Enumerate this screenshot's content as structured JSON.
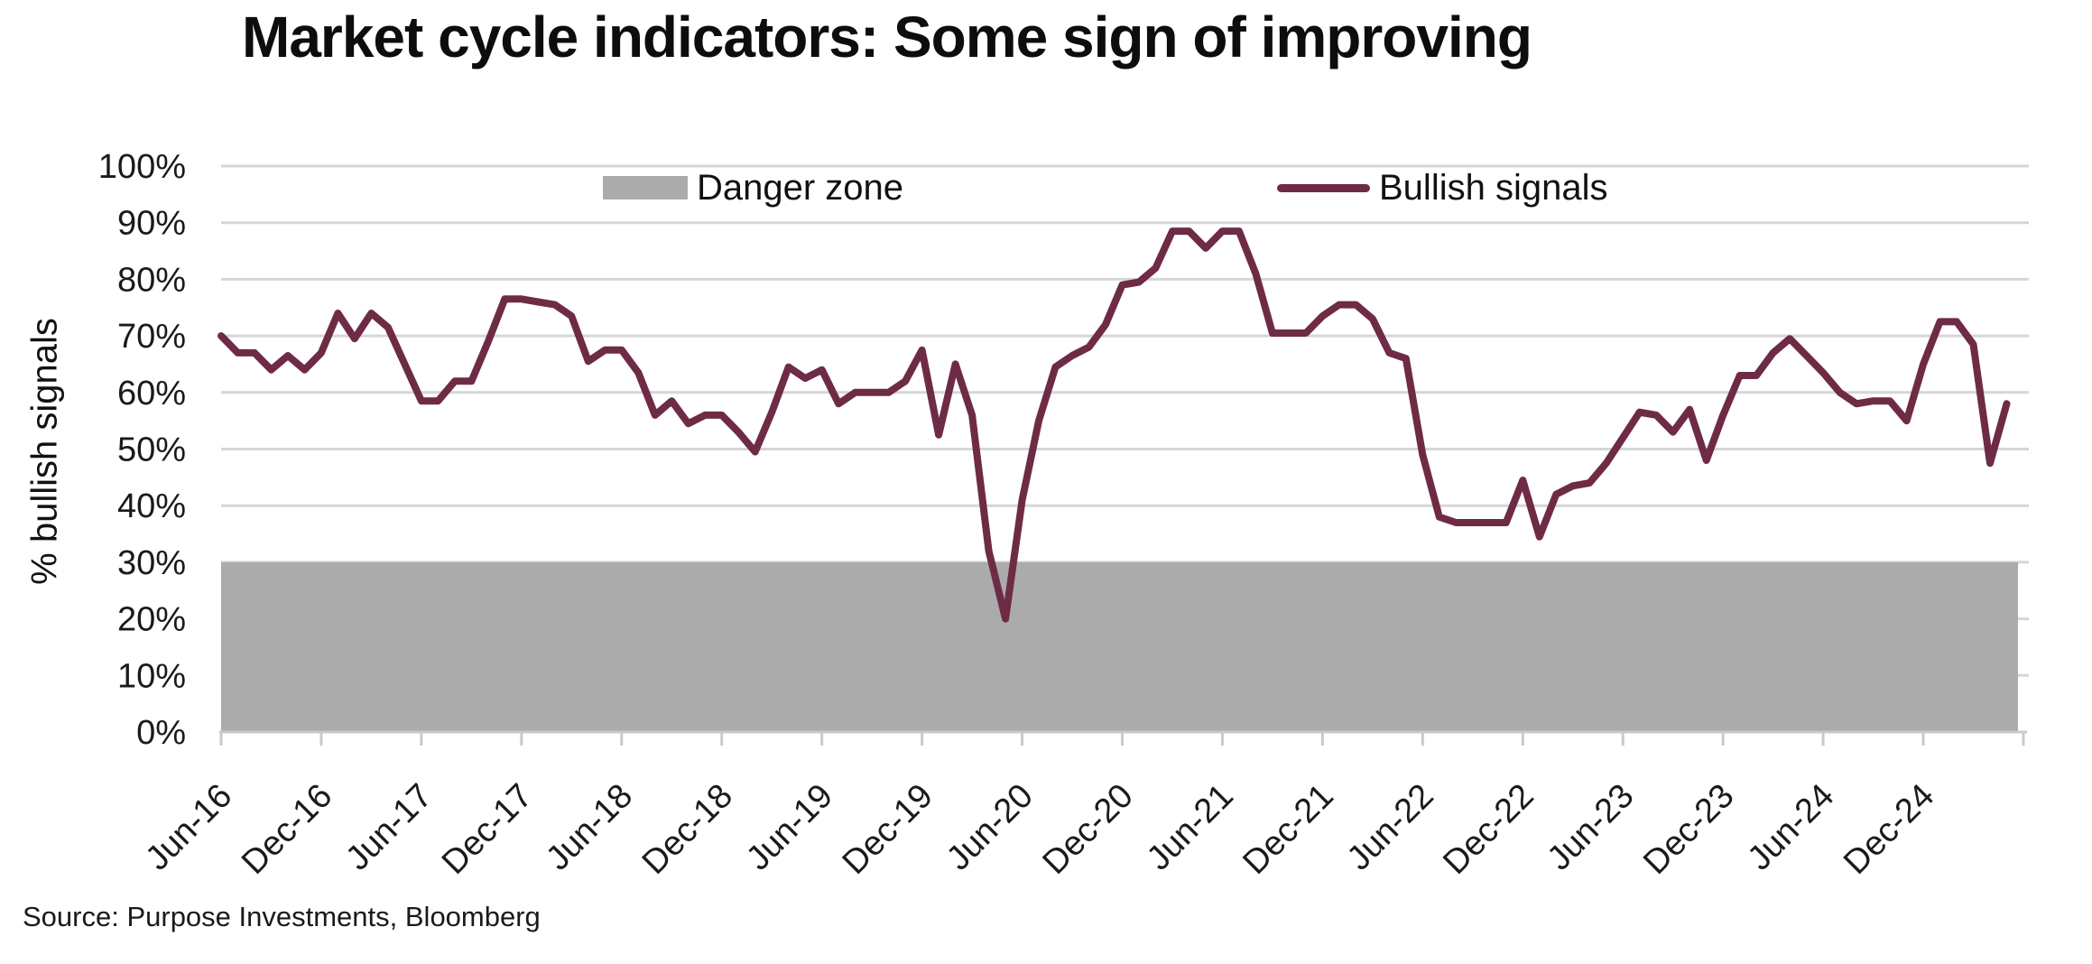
{
  "title": "Market cycle indicators: Some sign of improving",
  "source": "Source: Purpose Investments, Bloomberg",
  "y_axis": {
    "title": "% bullish signals"
  },
  "legend": {
    "danger_label": "Danger zone",
    "bullish_label": "Bullish signals"
  },
  "colors": {
    "line": "#6E2B46",
    "danger_zone": "#ABABAB",
    "grid": "#D6D6D6",
    "axis": "#C9C9C9",
    "text": "#1A1A1A"
  },
  "chart_data": {
    "type": "line",
    "title": "Market cycle indicators: Some sign of improving",
    "xlabel": "",
    "ylabel": "% bullish signals",
    "ylim": [
      0,
      100
    ],
    "grid": "horizontal",
    "legend_position": "top-inside",
    "y_tick_labels": [
      "0%",
      "10%",
      "20%",
      "30%",
      "40%",
      "50%",
      "60%",
      "70%",
      "80%",
      "90%",
      "100%"
    ],
    "x_tick_labels": [
      "Jun-16",
      "Dec-16",
      "Jun-17",
      "Dec-17",
      "Jun-18",
      "Dec-18",
      "Jun-19",
      "Dec-19",
      "Jun-20",
      "Dec-20",
      "Jun-21",
      "Dec-21",
      "Jun-22",
      "Dec-22",
      "Jun-23",
      "Dec-23",
      "Jun-24",
      "Dec-24"
    ],
    "danger_zone": {
      "label": "Danger zone",
      "from": 0,
      "to": 30
    },
    "series": [
      {
        "name": "Bullish signals",
        "unit": "%",
        "frequency": "monthly",
        "start": "Jun-2016",
        "end": "May-2025",
        "values": [
          70,
          67,
          67,
          64,
          66.5,
          64,
          67,
          74,
          69.5,
          74,
          71.5,
          65,
          58.5,
          58.5,
          62,
          62,
          69,
          76.5,
          76.5,
          76,
          75.5,
          73.5,
          65.5,
          67.5,
          67.5,
          63.5,
          56,
          58.5,
          54.5,
          56,
          56,
          53,
          49.5,
          56.5,
          64.5,
          62.5,
          64,
          58,
          60,
          60,
          60,
          62,
          67.5,
          52.5,
          65,
          56,
          32,
          20,
          41,
          55,
          64.5,
          66.5,
          68,
          72,
          79,
          79.5,
          82,
          88.5,
          88.5,
          85.5,
          88.5,
          88.5,
          81,
          70.5,
          70.5,
          70.5,
          73.5,
          75.5,
          75.5,
          73,
          67,
          66,
          49,
          38,
          37,
          37,
          37,
          37,
          44.5,
          34.5,
          42,
          43.5,
          44,
          47.5,
          52,
          56.5,
          56,
          53,
          57,
          48,
          56,
          63,
          63,
          67,
          69.5,
          66.5,
          63.5,
          60,
          58,
          58.5,
          58.5,
          55,
          65,
          72.5,
          72.5,
          68.5,
          47.5,
          58
        ]
      }
    ]
  }
}
